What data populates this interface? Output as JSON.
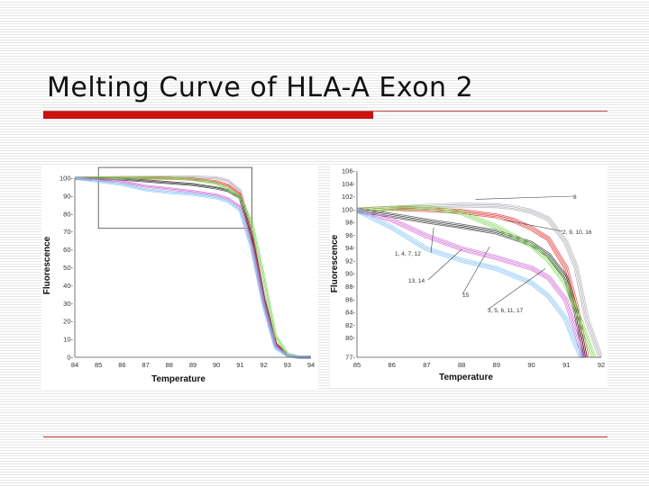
{
  "slide": {
    "title": "Melting Curve of HLA-A Exon 2"
  },
  "colors": {
    "title_bar": "#cc1111",
    "series": {
      "gray": "#b3aeb6",
      "red": "#e03c3c",
      "black": "#333333",
      "green": "#7ed957",
      "magenta": "#d26bd7",
      "cyan": "#86c6f2"
    }
  },
  "chart_data": [
    {
      "type": "line",
      "title": "",
      "xlabel": "Temperature",
      "ylabel": "Fluorescence",
      "xlim": [
        84,
        94
      ],
      "ylim": [
        0,
        100
      ],
      "x_ticks": [
        "84",
        "85",
        "86",
        "87",
        "88",
        "89",
        "90",
        "91",
        "92",
        "93",
        "94"
      ],
      "y_ticks": [
        "0-",
        "10-",
        "20-",
        "30-",
        "40-",
        "50-",
        "60-",
        "70-",
        "80-",
        "90-",
        "100-"
      ],
      "zoom_box": {
        "x": [
          85,
          91.5
        ],
        "y": [
          72,
          106
        ]
      },
      "series": [
        {
          "color_key": "gray",
          "x": [
            84,
            86,
            88,
            89,
            90,
            90.5,
            91,
            91.5,
            92,
            92.5,
            93,
            93.5,
            94
          ],
          "y": [
            100,
            100.3,
            100.6,
            100.7,
            100.2,
            98.5,
            93,
            70,
            35,
            8,
            1,
            0,
            0
          ]
        },
        {
          "color_key": "red",
          "x": [
            84,
            86,
            87,
            88,
            89,
            90,
            90.5,
            91,
            91.5,
            92,
            92.5,
            93,
            93.5,
            94
          ],
          "y": [
            100,
            100.3,
            100.2,
            100,
            99.5,
            98,
            96,
            91,
            68,
            33,
            8,
            1,
            0,
            0
          ]
        },
        {
          "color_key": "black",
          "x": [
            84,
            86,
            87,
            88,
            89,
            90,
            90.5,
            91,
            91.5,
            92,
            92.5,
            93,
            93.5,
            94
          ],
          "y": [
            100,
            99.5,
            98.5,
            97.5,
            96.5,
            94.5,
            93,
            89,
            66,
            32,
            7,
            1,
            0,
            0
          ]
        },
        {
          "color_key": "green",
          "x": [
            84,
            86,
            87,
            88,
            89,
            90,
            90.5,
            91,
            91.5,
            92,
            92.5,
            93,
            93.5,
            94
          ],
          "y": [
            100,
            100.2,
            100.4,
            100.2,
            99.3,
            97,
            94,
            89,
            75,
            45,
            12,
            2,
            0,
            0
          ]
        },
        {
          "color_key": "magenta",
          "x": [
            84,
            86,
            87,
            88,
            89,
            90,
            90.5,
            91,
            91.5,
            92,
            92.5,
            93,
            93.5,
            94
          ],
          "y": [
            100,
            98,
            95.5,
            94,
            92.5,
            90.5,
            88.5,
            84,
            62,
            30,
            6,
            1,
            0,
            0
          ]
        },
        {
          "color_key": "cyan",
          "x": [
            84,
            86,
            87,
            88,
            89,
            90,
            90.5,
            91,
            91.5,
            92,
            92.5,
            93,
            93.5,
            94
          ],
          "y": [
            100,
            96.5,
            93.5,
            92,
            91,
            89,
            87,
            82,
            60,
            28,
            5,
            1,
            0,
            0
          ]
        }
      ]
    },
    {
      "type": "line",
      "title": "",
      "xlabel": "Temperature",
      "ylabel": "Fluorescence",
      "xlim": [
        85,
        92
      ],
      "ylim": [
        77,
        106
      ],
      "x_ticks": [
        "85",
        "86",
        "87",
        "88",
        "89",
        "90",
        "91",
        "92"
      ],
      "y_ticks": [
        "77-",
        "80-",
        "82-",
        "84-",
        "86-",
        "88-",
        "90-",
        "92-",
        "94-",
        "96-",
        "98-",
        "100-",
        "102-",
        "104-",
        "106-"
      ],
      "annotations": [
        "8",
        "2, 9, 10, 16",
        "1, 4, 7, 12",
        "13, 14",
        "15",
        "3, 5, 6, 11, 17"
      ],
      "series": [
        {
          "color_key": "gray",
          "x": [
            85,
            86,
            87,
            88,
            89,
            89.5,
            90,
            90.5,
            91,
            91.3,
            91.6,
            92
          ],
          "y": [
            100,
            100.3,
            100.6,
            100.8,
            100.7,
            100.4,
            99.8,
            98.6,
            95,
            91,
            83,
            77
          ]
        },
        {
          "color_key": "red",
          "x": [
            85,
            86,
            87,
            88,
            89,
            89.5,
            90,
            90.5,
            91,
            91.3,
            91.6
          ],
          "y": [
            100,
            100.3,
            100.1,
            99.8,
            99.1,
            98.4,
            97.2,
            95.5,
            91,
            85,
            77
          ]
        },
        {
          "color_key": "black",
          "x": [
            85,
            86,
            87,
            88,
            89,
            90,
            90.5,
            91,
            91.3,
            91.55
          ],
          "y": [
            100,
            99.2,
            98.3,
            97.5,
            96.6,
            94.8,
            93,
            89.5,
            84,
            77
          ]
        },
        {
          "color_key": "green",
          "x": [
            85,
            86,
            87,
            88,
            89,
            90,
            90.5,
            91,
            91.4,
            91.8
          ],
          "y": [
            100,
            100.3,
            100.4,
            99.6,
            97.4,
            94.5,
            92.2,
            88.5,
            83,
            77
          ]
        },
        {
          "color_key": "magenta",
          "x": [
            85,
            86,
            87,
            88,
            89,
            90,
            90.5,
            91,
            91.3,
            91.5
          ],
          "y": [
            100,
            98.5,
            96,
            94,
            92.6,
            91,
            89.5,
            86,
            81,
            77
          ]
        },
        {
          "color_key": "cyan",
          "x": [
            85,
            86,
            87,
            88,
            89,
            90,
            90.5,
            91,
            91.25,
            91.45
          ],
          "y": [
            100,
            97.3,
            94,
            92.2,
            90.9,
            88.7,
            86.6,
            83,
            79.5,
            77
          ]
        }
      ]
    }
  ]
}
